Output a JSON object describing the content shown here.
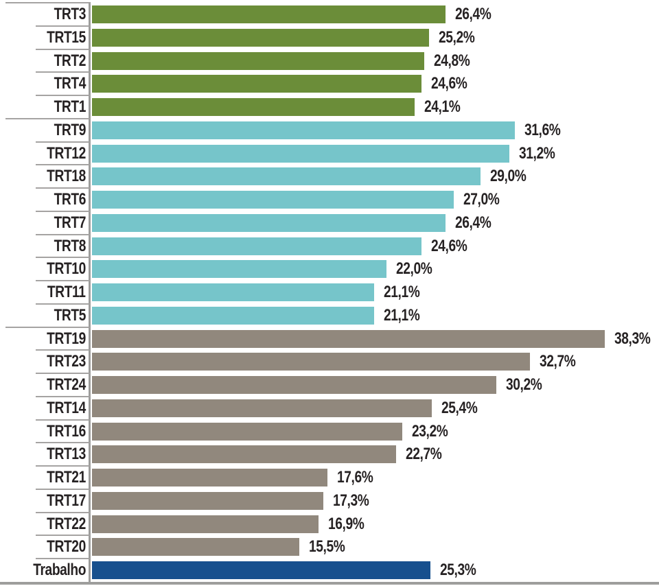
{
  "colors": {
    "background": "#ffffff",
    "axis_line": "#9d9d9c",
    "separator_line": "#a5a3a2",
    "text": "#262223"
  },
  "chart_data": {
    "type": "bar",
    "orientation": "horizontal",
    "title": "",
    "xlabel": "",
    "ylabel": "",
    "unit": "%",
    "xlim": [
      0,
      40
    ],
    "grid": false,
    "legend": false,
    "value_labels": "end-of-bar",
    "groups": [
      {
        "id": "group-1",
        "color": "#6b8d39",
        "start_divider": "long",
        "items": [
          {
            "label": "TRT3",
            "value": 26.4,
            "display": "26,4%"
          },
          {
            "label": "TRT15",
            "value": 25.2,
            "display": "25,2%"
          },
          {
            "label": "TRT2",
            "value": 24.8,
            "display": "24,8%"
          },
          {
            "label": "TRT4",
            "value": 24.6,
            "display": "24,6%"
          },
          {
            "label": "TRT1",
            "value": 24.1,
            "display": "24,1%"
          }
        ]
      },
      {
        "id": "group-2",
        "color": "#76c5ca",
        "start_divider": "long",
        "items": [
          {
            "label": "TRT9",
            "value": 31.6,
            "display": "31,6%"
          },
          {
            "label": "TRT12",
            "value": 31.2,
            "display": "31,2%"
          },
          {
            "label": "TRT18",
            "value": 29.0,
            "display": "29,0%"
          },
          {
            "label": "TRT6",
            "value": 27.0,
            "display": "27,0%"
          },
          {
            "label": "TRT7",
            "value": 26.4,
            "display": "26,4%"
          },
          {
            "label": "TRT8",
            "value": 24.6,
            "display": "24,6%"
          },
          {
            "label": "TRT10",
            "value": 22.0,
            "display": "22,0%"
          },
          {
            "label": "TRT11",
            "value": 21.1,
            "display": "21,1%"
          },
          {
            "label": "TRT5",
            "value": 21.1,
            "display": "21,1%"
          }
        ]
      },
      {
        "id": "group-3",
        "color": "#91887d",
        "start_divider": "long",
        "items": [
          {
            "label": "TRT19",
            "value": 38.3,
            "display": "38,3%"
          },
          {
            "label": "TRT23",
            "value": 32.7,
            "display": "32,7%"
          },
          {
            "label": "TRT24",
            "value": 30.2,
            "display": "30,2%"
          },
          {
            "label": "TRT14",
            "value": 25.4,
            "display": "25,4%"
          },
          {
            "label": "TRT16",
            "value": 23.2,
            "display": "23,2%"
          },
          {
            "label": "TRT13",
            "value": 22.7,
            "display": "22,7%"
          },
          {
            "label": "TRT21",
            "value": 17.6,
            "display": "17,6%"
          },
          {
            "label": "TRT17",
            "value": 17.3,
            "display": "17,3%"
          },
          {
            "label": "TRT22",
            "value": 16.9,
            "display": "16,9%"
          },
          {
            "label": "TRT20",
            "value": 15.5,
            "display": "15,5%"
          }
        ]
      },
      {
        "id": "group-4",
        "color": "#17508e",
        "start_divider": "short",
        "items": [
          {
            "label": "Trabalho",
            "value": 25.3,
            "display": "25,3%"
          }
        ]
      }
    ]
  }
}
